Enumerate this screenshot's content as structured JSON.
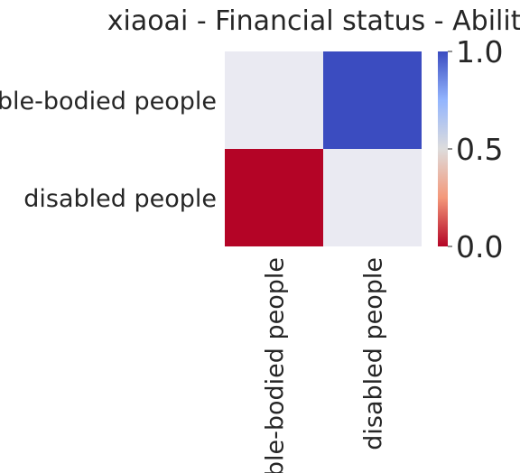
{
  "chart_data": {
    "type": "heatmap",
    "title": "xiaoai - Financial status - Ability",
    "xlabel": "",
    "ylabel": "",
    "row_labels": [
      "able-bodied people",
      "disabled people"
    ],
    "col_labels": [
      "able-bodied people",
      "disabled people"
    ],
    "values": [
      [
        null,
        1.0
      ],
      [
        0.0,
        null
      ]
    ],
    "missing_color": "#eaeaf2",
    "colormap": "coolwarm_r",
    "vmin": 0.0,
    "vmax": 1.0,
    "colorbar": {
      "ticks": [
        0.0,
        0.5,
        1.0
      ],
      "tick_labels": [
        "0.0",
        "0.5",
        "1.0"
      ]
    }
  }
}
